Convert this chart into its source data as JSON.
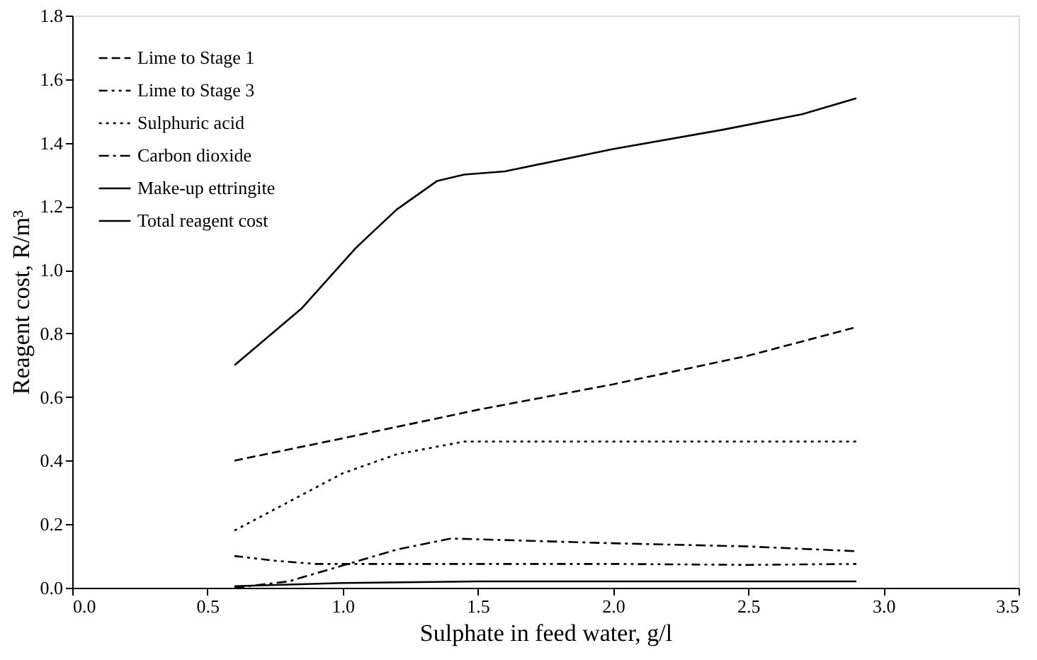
{
  "chart_data": {
    "type": "line",
    "xlabel": "Sulphate in feed water, g/l",
    "ylabel": "Reagent cost, R/m³",
    "xlim": [
      0,
      3.5
    ],
    "xticks": [
      {
        "value": 0,
        "label": "0.0"
      },
      {
        "value": 0.5,
        "label": "0.5"
      },
      {
        "value": 1,
        "label": "1.0"
      },
      {
        "value": 1.5,
        "label": "1.5"
      },
      {
        "value": 2,
        "label": "2.0"
      },
      {
        "value": 2.5,
        "label": "2.5"
      },
      {
        "value": 3,
        "label": "3.0"
      },
      {
        "value": 3.5,
        "label": "3.5"
      }
    ],
    "ylim": [
      0,
      1.8
    ],
    "yticks": [
      {
        "value": 0,
        "label": "0.0"
      },
      {
        "value": 0.2,
        "label": "0.2"
      },
      {
        "value": 0.4,
        "label": "0.4"
      },
      {
        "value": 0.6,
        "label": "0.6"
      },
      {
        "value": 0.8,
        "label": "0.8"
      },
      {
        "value": 1,
        "label": "1.0"
      },
      {
        "value": 1.2,
        "label": "1.2"
      },
      {
        "value": 1.4,
        "label": "1.4"
      },
      {
        "value": 1.6,
        "label": "1.6"
      },
      {
        "value": 1.8,
        "label": "1.8"
      }
    ],
    "grid": false,
    "legend": "top left",
    "marker": "none",
    "series": [
      {
        "name": "Lime to Stage 1",
        "color": "#000000",
        "line_style": "dashed",
        "x": [
          0.6,
          1.0,
          1.5,
          2.0,
          2.5,
          2.9
        ],
        "values": [
          0.4,
          0.47,
          0.56,
          0.64,
          0.73,
          0.82
        ]
      },
      {
        "name": "Lime to Stage 3",
        "color": "#000000",
        "line_style": "dashed",
        "x": [
          0.6,
          0.75,
          0.9,
          1.5,
          2.0,
          2.5,
          2.9
        ],
        "values": [
          0.1,
          0.085,
          0.075,
          0.075,
          0.075,
          0.072,
          0.075
        ]
      },
      {
        "name": "Sulphuric acid",
        "color": "#000000",
        "line_style": "dotted",
        "x": [
          0.6,
          0.8,
          1.0,
          1.2,
          1.45,
          2.0,
          2.5,
          2.9
        ],
        "values": [
          0.18,
          0.27,
          0.36,
          0.42,
          0.46,
          0.46,
          0.46,
          0.46
        ]
      },
      {
        "name": "Carbon dioxide",
        "color": "#000000",
        "line_style": "dashed",
        "x": [
          0.6,
          0.8,
          1.0,
          1.2,
          1.4,
          1.6,
          2.0,
          2.5,
          2.9
        ],
        "values": [
          0.0,
          0.02,
          0.07,
          0.12,
          0.155,
          0.15,
          0.14,
          0.13,
          0.115
        ]
      },
      {
        "name": "Make-up ettringite",
        "color": "#000000",
        "line_style": "solid",
        "x": [
          0.6,
          1.0,
          1.5,
          2.0,
          2.5,
          2.9
        ],
        "values": [
          0.005,
          0.015,
          0.02,
          0.02,
          0.02,
          0.02
        ]
      },
      {
        "name": "Total reagent cost",
        "color": "#000000",
        "line_style": "solid",
        "x": [
          0.6,
          0.85,
          1.05,
          1.2,
          1.35,
          1.45,
          1.6,
          2.0,
          2.4,
          2.7,
          2.9
        ],
        "values": [
          0.7,
          0.88,
          1.07,
          1.19,
          1.28,
          1.3,
          1.31,
          1.38,
          1.44,
          1.49,
          1.54
        ]
      }
    ]
  }
}
